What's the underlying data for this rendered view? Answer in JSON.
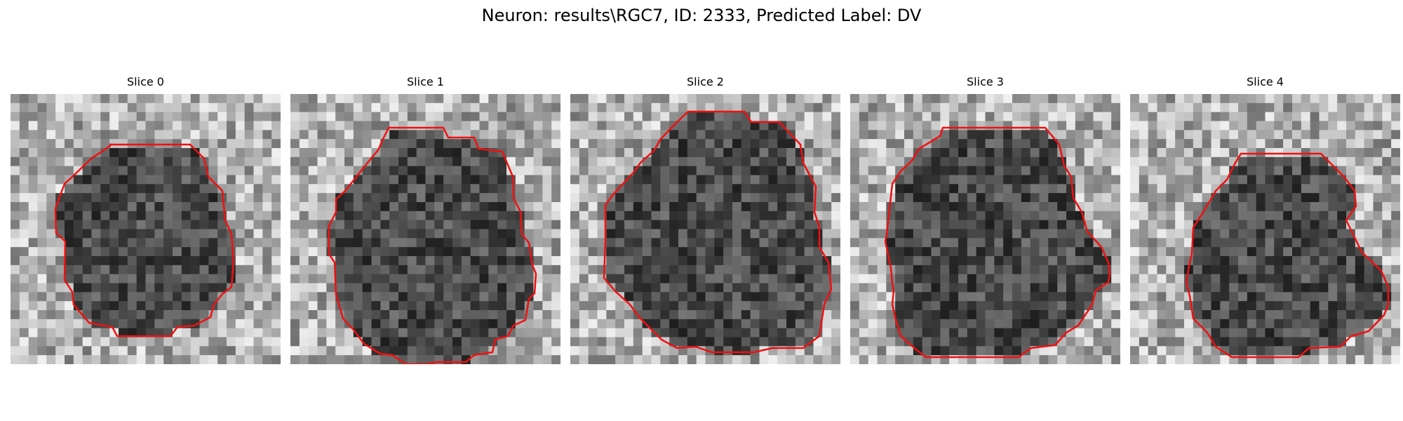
{
  "figure": {
    "title": "Neuron: results\\RGC7, ID: 2333, Predicted Label: DV",
    "contour_color": "#ee1111"
  },
  "panels": [
    {
      "title": "Slice 0"
    },
    {
      "title": "Slice 1"
    },
    {
      "title": "Slice 2"
    },
    {
      "title": "Slice 3"
    },
    {
      "title": "Slice 4"
    }
  ]
}
